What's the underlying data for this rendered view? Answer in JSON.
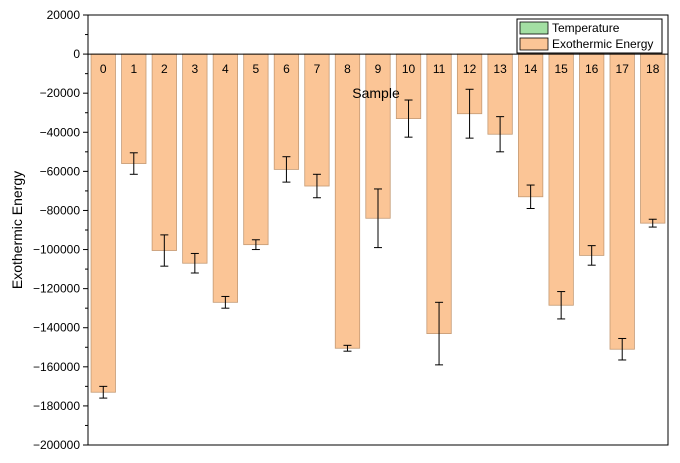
{
  "chart_data": {
    "type": "bar",
    "title": "",
    "xlabel": "Sample",
    "ylabel": "Exothermic Energy",
    "ylim": [
      -200000,
      20000
    ],
    "yticks": [
      20000,
      0,
      -20000,
      -40000,
      -60000,
      -80000,
      -100000,
      -120000,
      -140000,
      -160000,
      -180000,
      -200000
    ],
    "ytick_labels": [
      "20000",
      "0",
      "−20000",
      "−40000",
      "−60000",
      "−80000",
      "−100000",
      "−120000",
      "−140000",
      "−160000",
      "−180000",
      "−200000"
    ],
    "categories": [
      "0",
      "1",
      "2",
      "3",
      "4",
      "5",
      "6",
      "7",
      "8",
      "9",
      "10",
      "11",
      "12",
      "13",
      "14",
      "15",
      "16",
      "17",
      "18"
    ],
    "legend_position": "top-right",
    "legend": [
      {
        "name": "Temperature",
        "color": "#a3dfa3"
      },
      {
        "name": "Exothermic Energy",
        "color": "#fbc596"
      }
    ],
    "series": [
      {
        "name": "Exothermic Energy",
        "color": "#fbc596",
        "values": [
          -173000,
          -56000,
          -100500,
          -107000,
          -127000,
          -97500,
          -59000,
          -67500,
          -150500,
          -84000,
          -33000,
          -143000,
          -30500,
          -41000,
          -73000,
          -128500,
          -103000,
          -151000,
          -86500
        ],
        "errors": [
          3000,
          5500,
          8000,
          5000,
          3000,
          2500,
          6500,
          6000,
          1500,
          15000,
          9500,
          16000,
          12500,
          9000,
          6000,
          7000,
          5000,
          5500,
          2000
        ]
      }
    ],
    "grid": false
  }
}
